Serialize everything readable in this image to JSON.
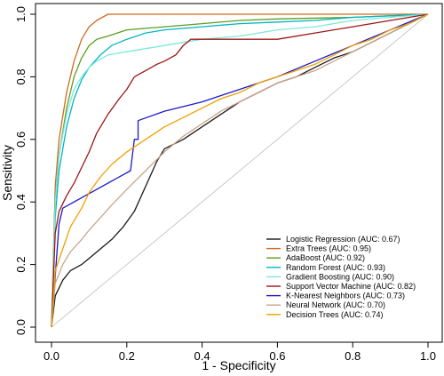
{
  "chart_data": {
    "type": "line",
    "xlabel": "1 - Specificity",
    "ylabel": "Sensitivity",
    "xlim": [
      0,
      1
    ],
    "ylim": [
      0,
      1
    ],
    "xticks": [
      0.0,
      0.2,
      0.4,
      0.6,
      0.8,
      1.0
    ],
    "yticks": [
      0.0,
      0.2,
      0.4,
      0.6,
      0.8,
      1.0
    ],
    "xtick_labels": [
      "0.0",
      "0.2",
      "0.4",
      "0.6",
      "0.8",
      "1.0"
    ],
    "ytick_labels": [
      "0.0",
      "0.2",
      "0.4",
      "0.6",
      "0.8",
      "1.0"
    ],
    "grid": false,
    "legend_position": "bottom-right",
    "reference_line": {
      "x": [
        0,
        1
      ],
      "y": [
        0,
        1
      ],
      "color": "#c8c8c8"
    },
    "series": [
      {
        "name": "Logistic Regression (AUC: 0.67)",
        "color": "#1a1a1a",
        "x": [
          0,
          0.01,
          0.03,
          0.05,
          0.08,
          0.1,
          0.13,
          0.16,
          0.19,
          0.22,
          0.25,
          0.28,
          0.3,
          0.35,
          0.4,
          0.45,
          0.5,
          0.55,
          0.6,
          0.65,
          0.7,
          0.75,
          0.8,
          0.85,
          0.9,
          0.95,
          1.0
        ],
        "y": [
          0,
          0.1,
          0.15,
          0.18,
          0.2,
          0.22,
          0.25,
          0.28,
          0.32,
          0.37,
          0.45,
          0.53,
          0.57,
          0.6,
          0.64,
          0.68,
          0.72,
          0.75,
          0.78,
          0.8,
          0.83,
          0.86,
          0.88,
          0.91,
          0.94,
          0.97,
          1.0
        ]
      },
      {
        "name": "Extra Trees (AUC: 0.95)",
        "color": "#d2691e",
        "x": [
          0,
          0.01,
          0.02,
          0.04,
          0.06,
          0.08,
          0.1,
          0.12,
          0.15,
          0.16,
          1.0
        ],
        "y": [
          0,
          0.45,
          0.6,
          0.75,
          0.85,
          0.92,
          0.96,
          0.98,
          1.0,
          1.0,
          1.0
        ]
      },
      {
        "name": "AdaBoost (AUC: 0.92)",
        "color": "#5a9e1e",
        "x": [
          0,
          0.01,
          0.02,
          0.04,
          0.06,
          0.08,
          0.1,
          0.12,
          0.15,
          0.2,
          0.3,
          0.4,
          0.5,
          0.6,
          0.8,
          1.0
        ],
        "y": [
          0,
          0.4,
          0.55,
          0.7,
          0.8,
          0.86,
          0.9,
          0.92,
          0.93,
          0.95,
          0.96,
          0.97,
          0.98,
          0.985,
          0.99,
          1.0
        ]
      },
      {
        "name": "Random Forest (AUC: 0.93)",
        "color": "#00b4c8",
        "x": [
          0,
          0.01,
          0.02,
          0.04,
          0.06,
          0.08,
          0.1,
          0.13,
          0.16,
          0.2,
          0.25,
          0.3,
          0.4,
          0.5,
          0.6,
          0.7,
          0.8,
          0.9,
          1.0
        ],
        "y": [
          0,
          0.35,
          0.5,
          0.64,
          0.73,
          0.79,
          0.83,
          0.87,
          0.9,
          0.92,
          0.94,
          0.95,
          0.96,
          0.97,
          0.975,
          0.98,
          0.99,
          0.995,
          1.0
        ]
      },
      {
        "name": "Gradient Boosting (AUC: 0.90)",
        "color": "#7ee8d8",
        "x": [
          0,
          0.01,
          0.02,
          0.04,
          0.06,
          0.08,
          0.1,
          0.12,
          0.15,
          0.2,
          0.25,
          0.3,
          0.4,
          0.5,
          0.6,
          0.7,
          0.8,
          0.9,
          1.0
        ],
        "y": [
          0,
          0.4,
          0.55,
          0.68,
          0.76,
          0.8,
          0.83,
          0.85,
          0.87,
          0.88,
          0.89,
          0.9,
          0.92,
          0.93,
          0.95,
          0.96,
          0.98,
          0.99,
          1.0
        ]
      },
      {
        "name": "Support Vector Machine (AUC: 0.82)",
        "color": "#9b1515",
        "x": [
          0,
          0.01,
          0.02,
          0.04,
          0.06,
          0.08,
          0.1,
          0.12,
          0.15,
          0.18,
          0.2,
          0.22,
          0.25,
          0.28,
          0.3,
          0.33,
          0.35,
          0.37,
          0.4,
          0.45,
          0.5,
          0.55,
          0.6,
          0.7,
          0.8,
          0.9,
          1.0
        ],
        "y": [
          0,
          0.3,
          0.37,
          0.42,
          0.46,
          0.51,
          0.56,
          0.62,
          0.68,
          0.73,
          0.76,
          0.8,
          0.82,
          0.84,
          0.85,
          0.87,
          0.9,
          0.92,
          0.92,
          0.92,
          0.92,
          0.92,
          0.92,
          0.94,
          0.96,
          0.98,
          1.0
        ]
      },
      {
        "name": "K-Nearest Neighbors (AUC: 0.73)",
        "color": "#1a1ac8",
        "x": [
          0,
          0.02,
          0.03,
          0.21,
          0.22,
          0.23,
          0.23,
          0.3,
          0.4,
          0.5,
          0.55,
          0.6,
          0.7,
          0.8,
          0.9,
          1.0
        ],
        "y": [
          0,
          0.33,
          0.38,
          0.5,
          0.6,
          0.6,
          0.66,
          0.69,
          0.72,
          0.76,
          0.78,
          0.8,
          0.85,
          0.9,
          0.95,
          1.0
        ]
      },
      {
        "name": "Neural Network (AUC: 0.70)",
        "color": "#c8a58c",
        "x": [
          0,
          0.01,
          0.03,
          0.05,
          0.08,
          0.1,
          0.13,
          0.16,
          0.2,
          0.25,
          0.3,
          0.35,
          0.4,
          0.45,
          0.5,
          0.55,
          0.6,
          0.65,
          0.7,
          0.75,
          0.8,
          0.85,
          0.9,
          0.95,
          1.0
        ],
        "y": [
          0,
          0.14,
          0.2,
          0.24,
          0.28,
          0.31,
          0.35,
          0.39,
          0.44,
          0.5,
          0.56,
          0.61,
          0.65,
          0.69,
          0.72,
          0.75,
          0.78,
          0.8,
          0.82,
          0.85,
          0.88,
          0.91,
          0.94,
          0.97,
          1.0
        ]
      },
      {
        "name": "Decision Trees (AUC: 0.74)",
        "color": "#f0a000",
        "x": [
          0,
          0.01,
          0.03,
          0.05,
          0.08,
          0.1,
          0.13,
          0.16,
          0.2,
          0.25,
          0.3,
          0.35,
          0.4,
          0.45,
          0.5,
          0.55,
          0.6,
          0.65,
          0.7,
          0.75,
          0.8,
          0.85,
          0.9,
          0.95,
          1.0
        ],
        "y": [
          0,
          0.18,
          0.25,
          0.32,
          0.38,
          0.43,
          0.48,
          0.52,
          0.56,
          0.6,
          0.64,
          0.67,
          0.7,
          0.73,
          0.75,
          0.78,
          0.8,
          0.82,
          0.84,
          0.87,
          0.9,
          0.92,
          0.95,
          0.97,
          1.0
        ]
      }
    ]
  }
}
